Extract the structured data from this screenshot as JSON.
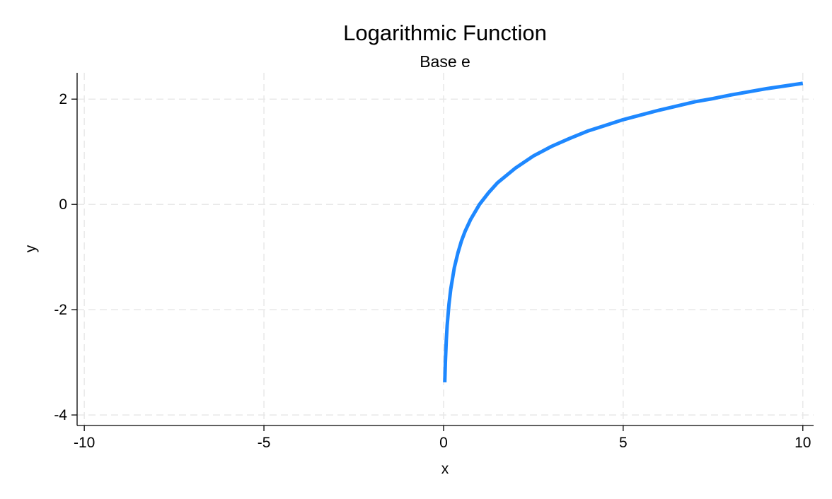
{
  "chart_data": {
    "type": "line",
    "title": "Logarithmic Function",
    "subtitle": "Base e",
    "xlabel": "x",
    "ylabel": "y",
    "xlim": [
      -10.2,
      10.3
    ],
    "ylim": [
      -4.2,
      2.5
    ],
    "xticks": [
      -10,
      -5,
      0,
      5,
      10
    ],
    "yticks": [
      -4,
      -2,
      0,
      2
    ],
    "grid": true,
    "series": [
      {
        "color": "#1e88ff",
        "function": "ln(x)",
        "x": [
          0.034,
          0.05,
          0.075,
          0.1,
          0.15,
          0.2,
          0.3,
          0.4,
          0.5,
          0.6,
          0.75,
          1,
          1.25,
          1.5,
          2,
          2.5,
          3,
          3.5,
          4,
          4.5,
          5,
          5.5,
          6,
          6.5,
          7,
          7.5,
          8,
          8.5,
          9,
          9.5,
          10
        ],
        "y": [
          -3.38,
          -3.0,
          -2.59,
          -2.3,
          -1.9,
          -1.61,
          -1.2,
          -0.92,
          -0.69,
          -0.51,
          -0.29,
          0,
          0.22,
          0.41,
          0.69,
          0.92,
          1.1,
          1.25,
          1.39,
          1.5,
          1.61,
          1.7,
          1.79,
          1.87,
          1.95,
          2.01,
          2.08,
          2.14,
          2.2,
          2.25,
          2.3
        ]
      }
    ]
  }
}
